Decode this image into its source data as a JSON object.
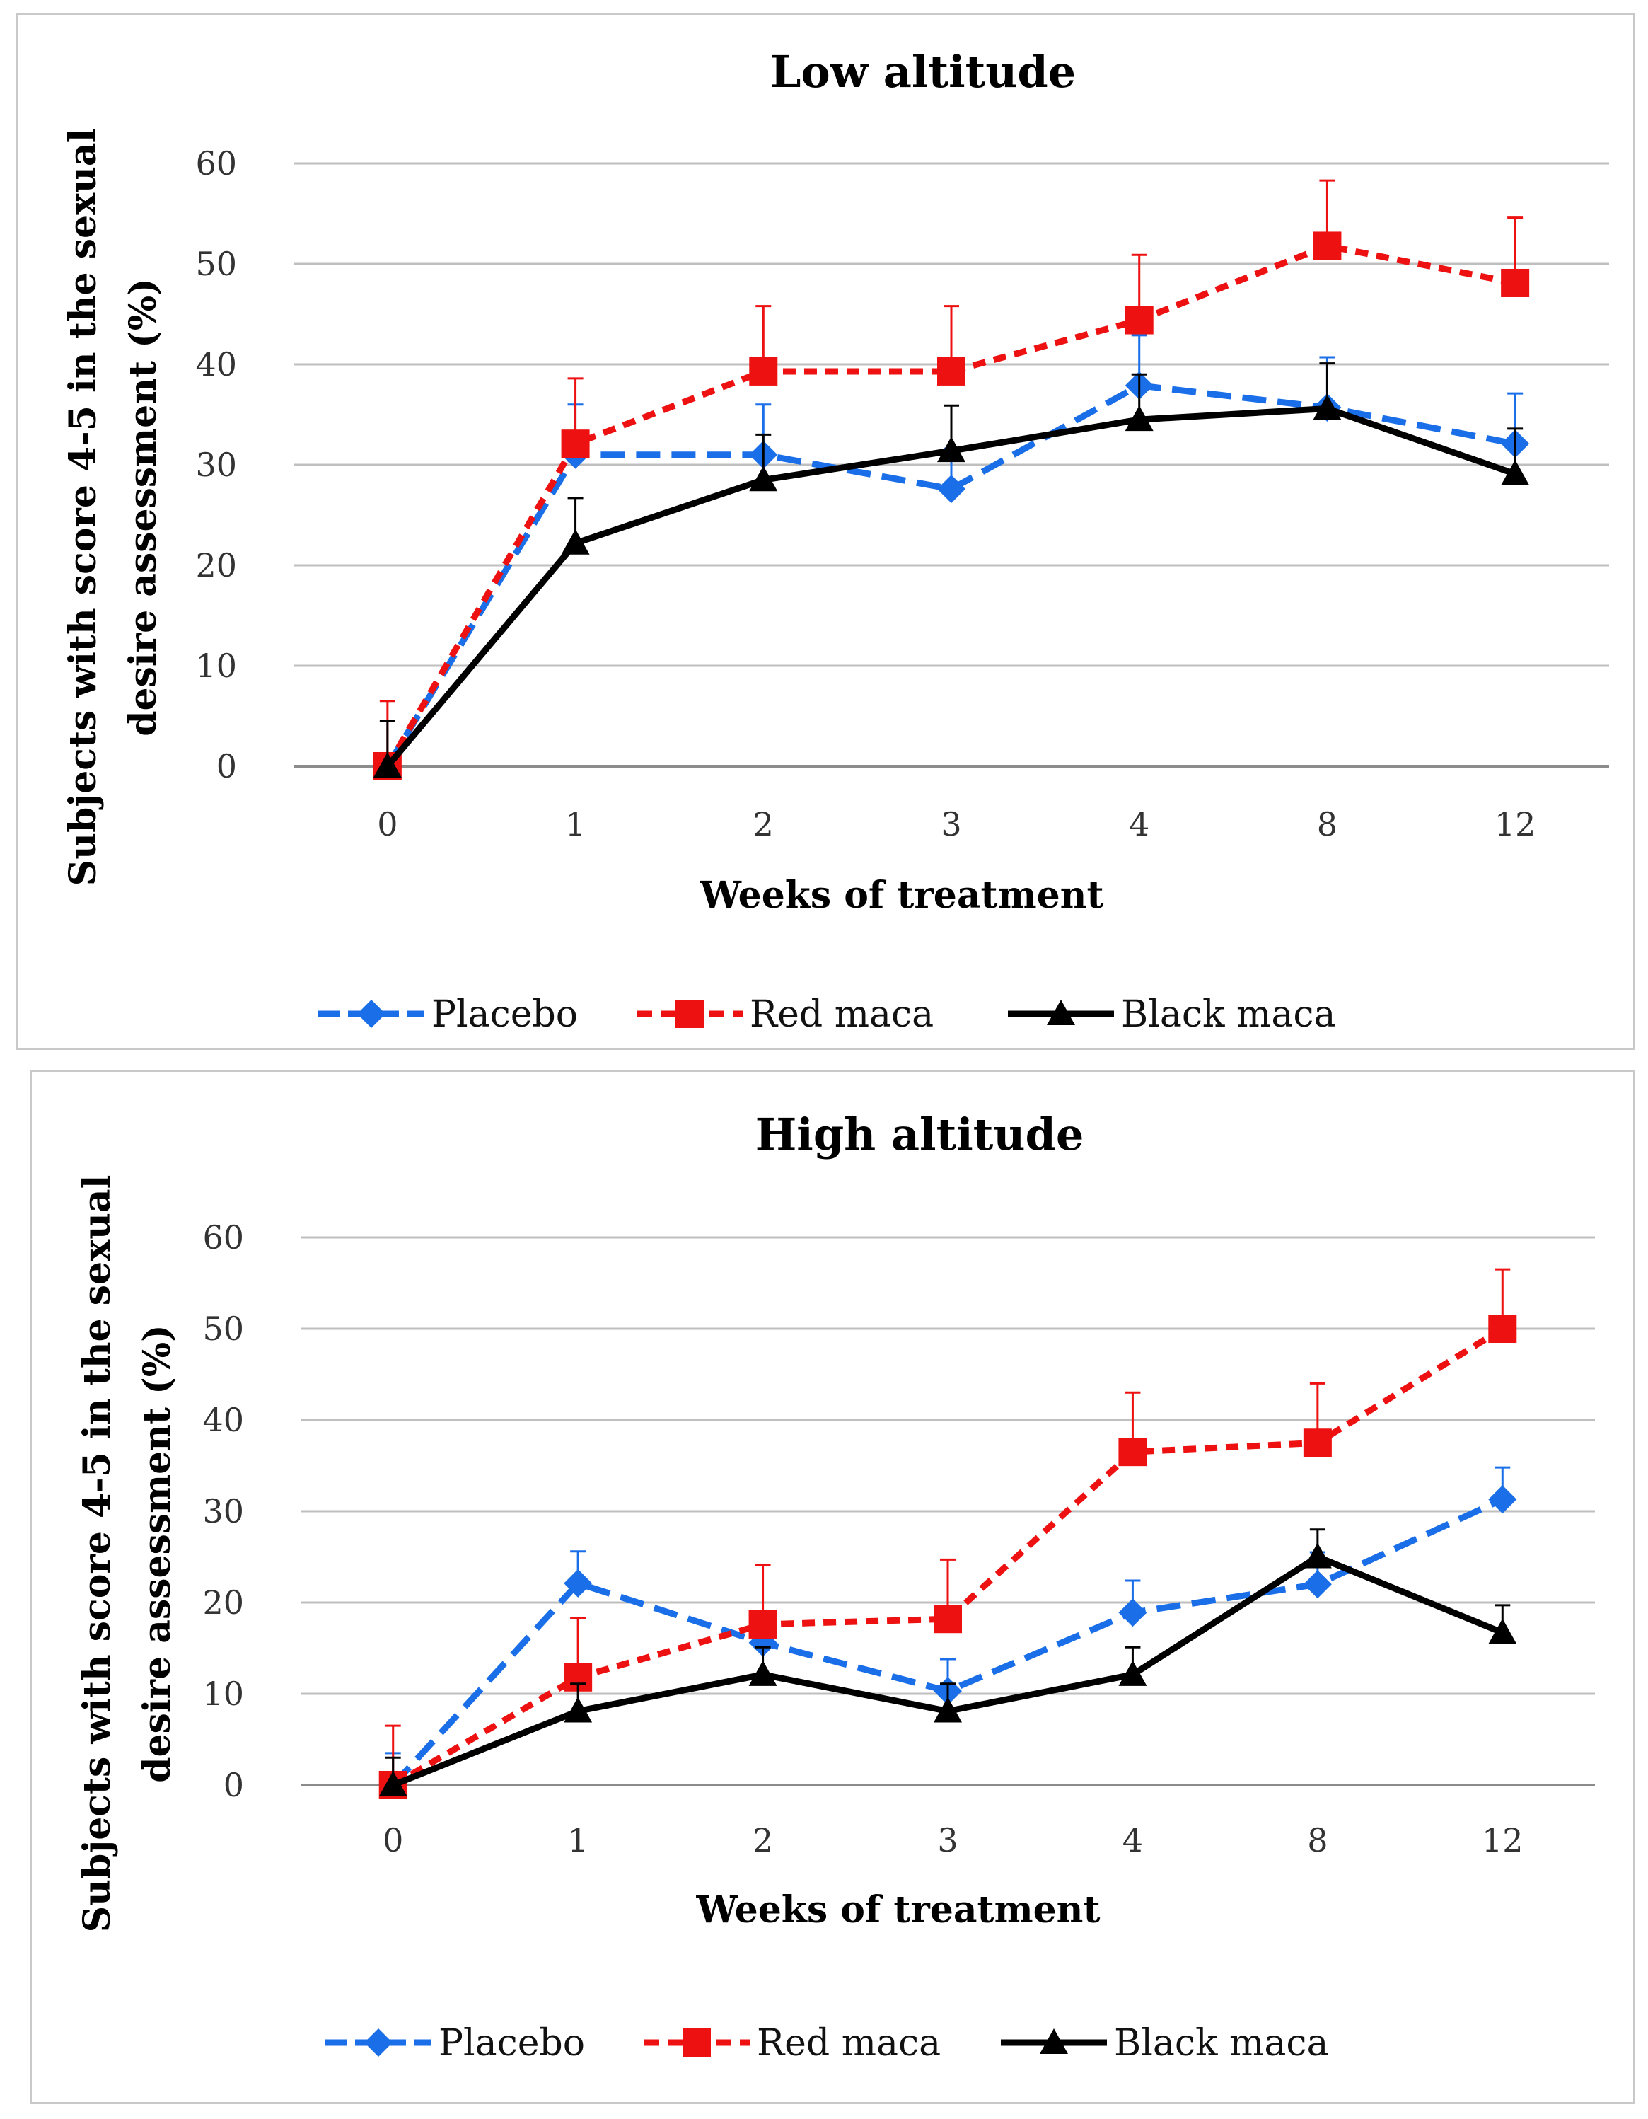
{
  "chart_data": [
    {
      "type": "line",
      "title": "Low altitude",
      "xlabel": "Weeks of treatment",
      "ylabel": "Subjects with score 4-5 in the sexual desire assessment (%)",
      "ylabel_lines": [
        "Subjects with score 4-5 in the sexual",
        "desire assessment (%)"
      ],
      "categories": [
        "0",
        "1",
        "2",
        "3",
        "4",
        "8",
        "12"
      ],
      "ylim": [
        0,
        60
      ],
      "yticks": [
        0,
        10,
        20,
        30,
        40,
        50,
        60
      ],
      "grid": true,
      "legend": "bottom",
      "series": [
        {
          "name": "Placebo",
          "color": "#1a6fe8",
          "marker": "diamond",
          "dash": "long-dash",
          "values": [
            0,
            31,
            31,
            27.6,
            37.9,
            35.7,
            32.1
          ],
          "errors": [
            0,
            5,
            5,
            4,
            5,
            5,
            5
          ]
        },
        {
          "name": "Red maca",
          "color": "#ee1111",
          "marker": "square",
          "dash": "short-dash",
          "values": [
            0,
            32.1,
            39.3,
            39.3,
            44.4,
            51.8,
            48.1
          ],
          "errors": [
            6.5,
            6.5,
            6.5,
            6.5,
            6.5,
            6.5,
            6.5
          ]
        },
        {
          "name": "Black maca",
          "color": "#000000",
          "marker": "triangle",
          "dash": "solid",
          "values": [
            0,
            22.2,
            28.5,
            31.4,
            34.5,
            35.6,
            29.1
          ],
          "errors": [
            4.5,
            4.5,
            4.5,
            4.5,
            4.5,
            4.5,
            4.5
          ]
        }
      ]
    },
    {
      "type": "line",
      "title": "High altitude",
      "xlabel": "Weeks of treatment",
      "ylabel": "Subjects with score 4-5 in the sexual desire assessment (%)",
      "ylabel_lines": [
        "Subjects with score 4-5 in the sexual",
        "desire assessment (%)"
      ],
      "categories": [
        "0",
        "1",
        "2",
        "3",
        "4",
        "8",
        "12"
      ],
      "ylim": [
        0,
        60
      ],
      "yticks": [
        0,
        10,
        20,
        30,
        40,
        50,
        60
      ],
      "grid": true,
      "legend": "bottom",
      "series": [
        {
          "name": "Placebo",
          "color": "#1a6fe8",
          "marker": "diamond",
          "dash": "long-dash",
          "values": [
            0,
            22.1,
            15.6,
            10.3,
            18.9,
            22,
            31.3
          ],
          "errors": [
            3.5,
            3.5,
            3.5,
            3.5,
            3.5,
            3.5,
            3.5
          ]
        },
        {
          "name": "Red maca",
          "color": "#ee1111",
          "marker": "square",
          "dash": "short-dash",
          "values": [
            0,
            11.8,
            17.6,
            18.2,
            36.5,
            37.5,
            50
          ],
          "errors": [
            6.5,
            6.5,
            6.5,
            6.5,
            6.5,
            6.5,
            6.5
          ]
        },
        {
          "name": "Black maca",
          "color": "#000000",
          "marker": "triangle",
          "dash": "solid",
          "values": [
            0,
            8.1,
            12.1,
            8.1,
            12.1,
            25,
            16.7
          ],
          "errors": [
            3,
            3,
            3,
            3,
            3,
            3,
            3
          ]
        }
      ]
    }
  ]
}
